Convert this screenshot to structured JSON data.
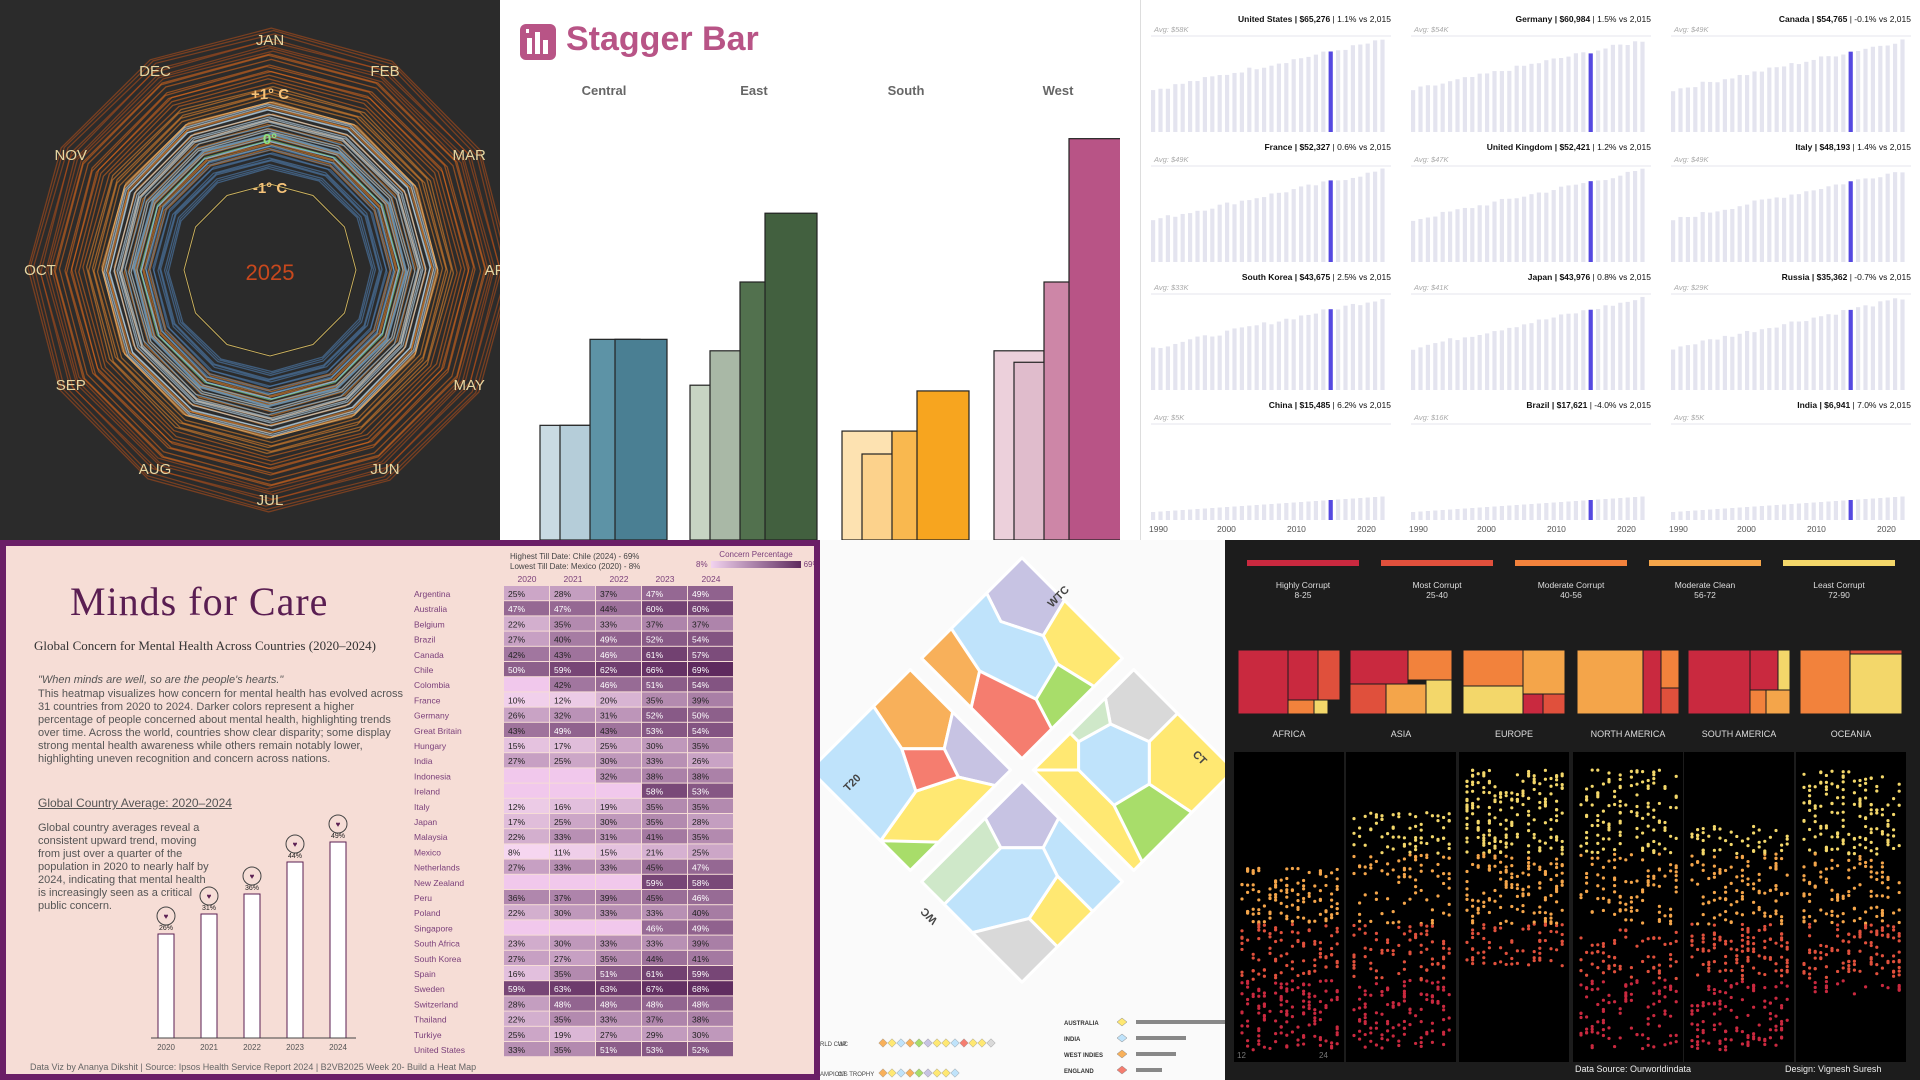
{
  "radial": {
    "months": [
      "JAN",
      "FEB",
      "MAR",
      "APR",
      "MAY",
      "JUN",
      "JUL",
      "AUG",
      "SEP",
      "OCT",
      "NOV",
      "DEC"
    ],
    "ring_labels": [
      "+1° C",
      "0°",
      "-1° C"
    ],
    "year": "2025",
    "colors": {
      "bg": "#2b2b2b",
      "warm": "#f08a2c",
      "cool": "#8fc4ec",
      "month_text": "#e6d7a3",
      "year_text": "#c8481d",
      "plus": "#f6c37a",
      "zero": "#8ee27e",
      "minus": "#f6c37a"
    }
  },
  "stagger": {
    "title": "Stagger Bar",
    "icon": "bar-chart-icon",
    "title_color": "#b85486"
  },
  "gdp": {
    "footer_years": [
      "1990",
      "2000",
      "2010",
      "2020"
    ],
    "bar_color": "#e4e4ef",
    "highlight_color": "#5548e0"
  },
  "heat": {
    "title": "Minds for Care",
    "subtitle": "Global Concern for Mental Health Across Countries (2020–2024)",
    "quote": "\"When minds are well, so are the people's hearts.\"",
    "description": "This heatmap visualizes how concern for mental health has evolved across 31 countries from 2020 to 2024. Darker colors represent a higher percentage of people concerned about mental health, highlighting trends over time. Across the world, countries show clear disparity; some display strong mental health awareness while others remain notably lower, highlighting uneven recognition and concern across nations.",
    "avg_title": "Global Country Average: 2020–2024",
    "avg_desc": "Global country averages reveal a consistent upward trend, moving from just over a quarter of the population in 2020 to nearly half by 2024, indicating that mental health is increasingly seen as a critical public concern.",
    "highest": "Highest Till Date: Chile (2024) - 69%",
    "lowest": "Lowest Till Date: Mexico (2020) - 8%",
    "legend_title": "Concern Percentage",
    "legend_min": "8%",
    "legend_max": "69%",
    "footer": "Data Viz by Ananya Dikshit | Source: Ipsos Health Service Report 2024 | B2VB2025 Week 20- Build a Heat Map",
    "colors": {
      "title": "#5a1e52",
      "border": "#6a1f66",
      "bg": "#f6ddd6"
    }
  },
  "cricket": {
    "labels": [
      "WTC",
      "CT",
      "WC",
      "T20"
    ],
    "bottom_left": [
      {
        "code": "WC",
        "label": "RLD CUP"
      },
      {
        "code": "CT",
        "label": "AMPIONS TROPHY"
      }
    ],
    "legend": [
      {
        "team": "AUSTRALIA",
        "color": "#ffe872"
      },
      {
        "team": "INDIA",
        "color": "#bfe3fb"
      },
      {
        "team": "WEST INDIES",
        "color": "#f8b05a"
      },
      {
        "team": "ENGLAND",
        "color": "#f57d6f"
      }
    ]
  },
  "corrupt": {
    "legend": [
      {
        "label": "Highly Corrupt",
        "range": "8-25",
        "color": "#c9293f"
      },
      {
        "label": "Most Corrupt",
        "range": "25-40",
        "color": "#e0503c"
      },
      {
        "label": "Moderate Corrupt",
        "range": "40-56",
        "color": "#f2823c"
      },
      {
        "label": "Moderate Clean",
        "range": "56-72",
        "color": "#f4a54a"
      },
      {
        "label": "Least Corrupt",
        "range": "72-90",
        "color": "#f3d76a"
      }
    ],
    "regions": [
      "AFRICA",
      "ASIA",
      "EUROPE",
      "NORTH AMERICA",
      "SOUTH AMERICA",
      "OCEANIA"
    ],
    "axis": [
      "12",
      "24"
    ],
    "source": "Data Source: Ourworldindata",
    "design": "Design: Vignesh Suresh"
  },
  "chart_data": [
    {
      "type": "line",
      "title": "",
      "note": "radial temperature anomaly spiral",
      "categories": [
        "JAN",
        "FEB",
        "MAR",
        "APR",
        "MAY",
        "JUN",
        "JUL",
        "AUG",
        "SEP",
        "OCT",
        "NOV",
        "DEC"
      ],
      "ring_values": [
        1,
        0,
        -1
      ],
      "year": "2025"
    },
    {
      "type": "bar",
      "title": "Stagger Bar",
      "categories": [
        "Central",
        "East",
        "South",
        "West"
      ],
      "series": [
        {
          "values": [
            20,
            27,
            19,
            33
          ]
        },
        {
          "values": [
            20,
            33,
            15,
            31
          ]
        },
        {
          "values": [
            35,
            45,
            19,
            45
          ]
        },
        {
          "values": [
            35,
            57,
            26,
            70
          ]
        }
      ],
      "colors": {
        "Central": [
          "#c9dbe3",
          "#b5cdd9",
          "#5d93a6",
          "#4a7f93"
        ],
        "East": [
          "#c7d4c3",
          "#a9b8a6",
          "#52714e",
          "#42603f"
        ],
        "South": [
          "#fde2b1",
          "#fcd28c",
          "#f9b84f",
          "#f7a51f"
        ],
        "West": [
          "#ecd0db",
          "#e0bccc",
          "#cd86a7",
          "#b85486"
        ]
      },
      "ylim": [
        0,
        75
      ]
    },
    {
      "type": "bar",
      "note": "small multiples of GDP per capita",
      "panels": [
        {
          "country": "United States",
          "value": "$65,276",
          "change": "1.1% vs 2,015",
          "avg": "Avg: $58K"
        },
        {
          "country": "Germany",
          "value": "$60,984",
          "change": "1.5% vs 2,015",
          "avg": "Avg: $54K"
        },
        {
          "country": "Canada",
          "value": "$54,765",
          "change": "-0.1% vs 2,015",
          "avg": "Avg: $49K"
        },
        {
          "country": "France",
          "value": "$52,327",
          "change": "0.6% vs 2,015",
          "avg": "Avg: $49K"
        },
        {
          "country": "United Kingdom",
          "value": "$52,421",
          "change": "1.2% vs 2,015",
          "avg": "Avg: $47K"
        },
        {
          "country": "Italy",
          "value": "$48,193",
          "change": "1.4% vs 2,015",
          "avg": "Avg: $49K"
        },
        {
          "country": "South Korea",
          "value": "$43,675",
          "change": "2.5% vs 2,015",
          "avg": "Avg: $33K"
        },
        {
          "country": "Japan",
          "value": "$43,976",
          "change": "0.8% vs 2,015",
          "avg": "Avg: $41K"
        },
        {
          "country": "Russia",
          "value": "$35,362",
          "change": "-0.7% vs 2,015",
          "avg": "Avg: $29K"
        },
        {
          "country": "China",
          "value": "$15,485",
          "change": "6.2% vs 2,015",
          "avg": "Avg: $5K"
        },
        {
          "country": "Brazil",
          "value": "$17,621",
          "change": "-4.0% vs 2,015",
          "avg": "Avg: $16K"
        },
        {
          "country": "India",
          "value": "$6,941",
          "change": "7.0% vs 2,015",
          "avg": "Avg: $5K"
        }
      ],
      "x_ticks": [
        "1990",
        "2000",
        "2010",
        "2020"
      ]
    },
    {
      "type": "heatmap",
      "title": "Minds for Care",
      "years": [
        "2020",
        "2021",
        "2022",
        "2023",
        "2024"
      ],
      "rows": [
        {
          "country": "Argentina",
          "values": [
            "25%",
            "28%",
            "37%",
            "47%",
            "49%"
          ]
        },
        {
          "country": "Australia",
          "values": [
            "47%",
            "47%",
            "44%",
            "60%",
            "60%"
          ]
        },
        {
          "country": "Belgium",
          "values": [
            "22%",
            "35%",
            "33%",
            "37%",
            "37%"
          ]
        },
        {
          "country": "Brazil",
          "values": [
            "27%",
            "40%",
            "49%",
            "52%",
            "54%"
          ]
        },
        {
          "country": "Canada",
          "values": [
            "42%",
            "43%",
            "46%",
            "61%",
            "57%"
          ]
        },
        {
          "country": "Chile",
          "values": [
            "50%",
            "59%",
            "62%",
            "66%",
            "69%"
          ]
        },
        {
          "country": "Colombia",
          "values": [
            "",
            "42%",
            "46%",
            "51%",
            "54%"
          ]
        },
        {
          "country": "France",
          "values": [
            "10%",
            "12%",
            "20%",
            "35%",
            "39%"
          ]
        },
        {
          "country": "Germany",
          "values": [
            "26%",
            "32%",
            "31%",
            "52%",
            "50%"
          ]
        },
        {
          "country": "Great Britain",
          "values": [
            "43%",
            "49%",
            "43%",
            "53%",
            "54%"
          ]
        },
        {
          "country": "Hungary",
          "values": [
            "15%",
            "17%",
            "25%",
            "30%",
            "35%"
          ]
        },
        {
          "country": "India",
          "values": [
            "27%",
            "25%",
            "30%",
            "33%",
            "26%"
          ]
        },
        {
          "country": "Indonesia",
          "values": [
            "",
            "",
            "32%",
            "38%",
            "38%"
          ]
        },
        {
          "country": "Ireland",
          "values": [
            "",
            "",
            "",
            "58%",
            "53%"
          ]
        },
        {
          "country": "Italy",
          "values": [
            "12%",
            "16%",
            "19%",
            "35%",
            "35%"
          ]
        },
        {
          "country": "Japan",
          "values": [
            "17%",
            "25%",
            "30%",
            "35%",
            "28%"
          ]
        },
        {
          "country": "Malaysia",
          "values": [
            "22%",
            "33%",
            "31%",
            "41%",
            "35%"
          ]
        },
        {
          "country": "Mexico",
          "values": [
            "8%",
            "11%",
            "15%",
            "21%",
            "25%"
          ]
        },
        {
          "country": "Netherlands",
          "values": [
            "27%",
            "33%",
            "33%",
            "45%",
            "47%"
          ]
        },
        {
          "country": "New Zealand",
          "values": [
            "",
            "",
            "",
            "59%",
            "58%"
          ]
        },
        {
          "country": "Peru",
          "values": [
            "36%",
            "37%",
            "39%",
            "45%",
            "46%"
          ]
        },
        {
          "country": "Poland",
          "values": [
            "22%",
            "30%",
            "33%",
            "33%",
            "40%"
          ]
        },
        {
          "country": "Singapore",
          "values": [
            "",
            "",
            "",
            "46%",
            "49%"
          ]
        },
        {
          "country": "South Africa",
          "values": [
            "23%",
            "30%",
            "33%",
            "33%",
            "39%"
          ]
        },
        {
          "country": "South Korea",
          "values": [
            "27%",
            "27%",
            "35%",
            "44%",
            "41%"
          ]
        },
        {
          "country": "Spain",
          "values": [
            "16%",
            "35%",
            "51%",
            "61%",
            "59%"
          ]
        },
        {
          "country": "Sweden",
          "values": [
            "59%",
            "63%",
            "63%",
            "67%",
            "68%"
          ]
        },
        {
          "country": "Switzerland",
          "values": [
            "28%",
            "48%",
            "48%",
            "48%",
            "48%"
          ]
        },
        {
          "country": "Thailand",
          "values": [
            "22%",
            "35%",
            "33%",
            "37%",
            "38%"
          ]
        },
        {
          "country": "Turkiye",
          "values": [
            "25%",
            "19%",
            "27%",
            "29%",
            "30%"
          ]
        },
        {
          "country": "United States",
          "values": [
            "33%",
            "35%",
            "51%",
            "53%",
            "52%"
          ]
        }
      ],
      "averages": {
        "categories": [
          "2020",
          "2021",
          "2022",
          "2023",
          "2024"
        ],
        "values": [
          26,
          31,
          36,
          44,
          49
        ],
        "labels": [
          "26%",
          "31%",
          "36%",
          "44%",
          "49%"
        ]
      }
    },
    {
      "type": "bar",
      "note": "corruption index bubble/treemap by region",
      "regions": [
        "AFRICA",
        "ASIA",
        "EUROPE",
        "NORTH AMERICA",
        "SOUTH AMERICA",
        "OCEANIA"
      ],
      "axis_ticks": [
        "12",
        "24"
      ]
    }
  ]
}
